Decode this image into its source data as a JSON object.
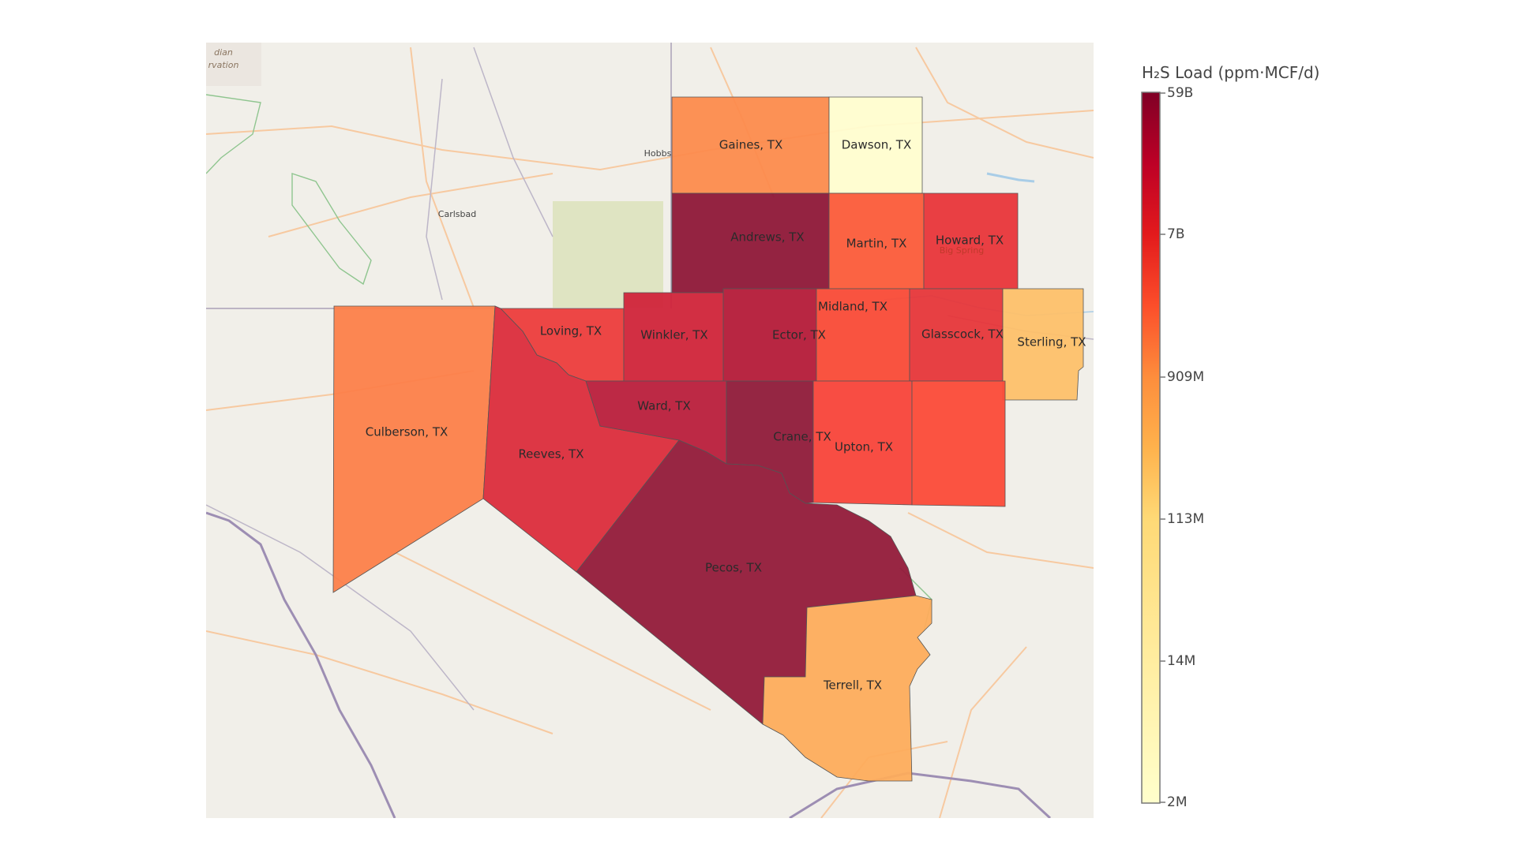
{
  "colorbar": {
    "title": "H₂S Load (ppm·MCF/d)",
    "ticks": [
      "59B",
      "7B",
      "909M",
      "113M",
      "14M",
      "2M"
    ]
  },
  "basemap_places": [
    "Hobbs",
    "Carlsbad",
    "Big Spring"
  ],
  "basemap_text_fragments": [
    "dian",
    "rvation"
  ],
  "counties": [
    {
      "name": "Gaines, TX",
      "color": "#fc8b4d"
    },
    {
      "name": "Dawson, TX",
      "color": "#fffdd0"
    },
    {
      "name": "Andrews, TX",
      "color": "#8e1738"
    },
    {
      "name": "Martin, TX",
      "color": "#fb5b3a"
    },
    {
      "name": "Howard, TX",
      "color": "#e8353a"
    },
    {
      "name": "Loving, TX",
      "color": "#ec3c3c"
    },
    {
      "name": "Winkler, TX",
      "color": "#d0243a"
    },
    {
      "name": "Ector, TX",
      "color": "#b41a39"
    },
    {
      "name": "Midland, TX",
      "color": "#f94a37"
    },
    {
      "name": "Glasscock, TX",
      "color": "#e6363a"
    },
    {
      "name": "Sterling, TX",
      "color": "#fdc06a"
    },
    {
      "name": "Culberson, TX",
      "color": "#fc7f4a"
    },
    {
      "name": "Reeves, TX",
      "color": "#db2c3c"
    },
    {
      "name": "Ward, TX",
      "color": "#b91d3c"
    },
    {
      "name": "Crane, TX",
      "color": "#8f1a3a"
    },
    {
      "name": "Upton, TX",
      "color": "#f8433a"
    },
    {
      "name": "Pecos, TX",
      "color": "#921a3a"
    },
    {
      "name": "Terrell, TX",
      "color": "#fdac5c"
    },
    {
      "name": "",
      "color": "#fb4a38"
    }
  ]
}
